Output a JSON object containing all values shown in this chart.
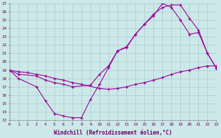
{
  "xlabel": "Windchill (Refroidissement éolien,°C)",
  "background_color": "#cce8e8",
  "grid_color": "#aacccc",
  "line_color": "#990099",
  "xlim": [
    0,
    23
  ],
  "ylim": [
    13,
    27
  ],
  "xticks": [
    0,
    1,
    2,
    3,
    4,
    5,
    6,
    7,
    8,
    9,
    10,
    11,
    12,
    13,
    14,
    15,
    16,
    17,
    18,
    19,
    20,
    21,
    22,
    23
  ],
  "yticks": [
    13,
    14,
    15,
    16,
    17,
    18,
    19,
    20,
    21,
    22,
    23,
    24,
    25,
    26,
    27
  ],
  "line1_x": [
    0,
    1,
    3,
    4,
    5,
    6,
    7,
    8,
    9,
    10,
    11,
    12,
    13,
    14,
    15,
    16,
    17,
    18,
    19,
    20,
    21,
    22,
    23
  ],
  "line1_y": [
    19,
    18,
    17,
    15.3,
    13.8,
    13.5,
    13.3,
    13.3,
    15.5,
    17.3,
    19.3,
    21.3,
    21.8,
    23.3,
    24.5,
    25.5,
    27.0,
    26.5,
    25.0,
    23.3,
    23.5,
    21.0,
    19.2
  ],
  "line2_x": [
    0,
    1,
    2,
    3,
    4,
    5,
    6,
    7,
    8,
    10,
    11,
    12,
    13,
    14,
    15,
    16,
    17,
    18,
    19,
    20,
    21,
    22,
    23
  ],
  "line2_y": [
    19,
    18.8,
    18.7,
    18.5,
    18.3,
    18.0,
    17.8,
    17.5,
    17.3,
    16.8,
    16.7,
    16.8,
    17.0,
    17.3,
    17.5,
    17.8,
    18.1,
    18.5,
    18.8,
    19.0,
    19.3,
    19.5,
    19.5
  ],
  "line3_x": [
    0,
    1,
    3,
    4,
    5,
    6,
    7,
    9,
    10,
    11,
    12,
    13,
    14,
    15,
    16,
    17,
    18,
    19,
    20,
    21,
    22,
    23
  ],
  "line3_y": [
    19,
    18.5,
    18.3,
    17.8,
    17.5,
    17.3,
    17.0,
    17.2,
    18.5,
    19.5,
    21.3,
    21.7,
    23.3,
    24.5,
    25.7,
    26.5,
    26.8,
    26.8,
    25.2,
    23.8,
    21.0,
    19.2
  ]
}
